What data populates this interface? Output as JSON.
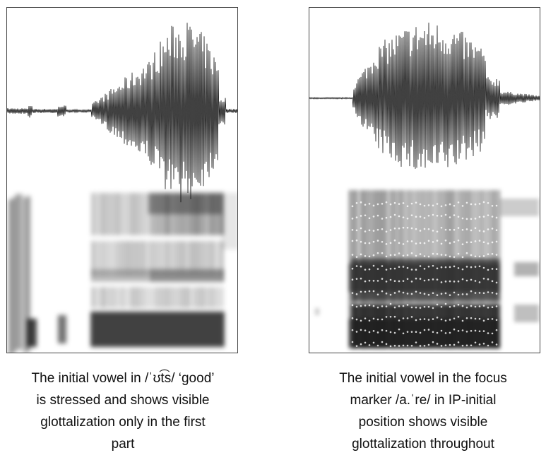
{
  "figure": {
    "left": {
      "caption_lines": [
        "The initial vowel in /ˈʊt͡s/ ‘good’",
        "is stressed and shows visible",
        "glottalization only in the first",
        "part"
      ]
    },
    "right": {
      "caption_lines": [
        "The initial vowel in the focus",
        "marker /a.ˈre/ in IP-initial",
        "position shows visible",
        "glottalization throughout"
      ]
    }
  }
}
